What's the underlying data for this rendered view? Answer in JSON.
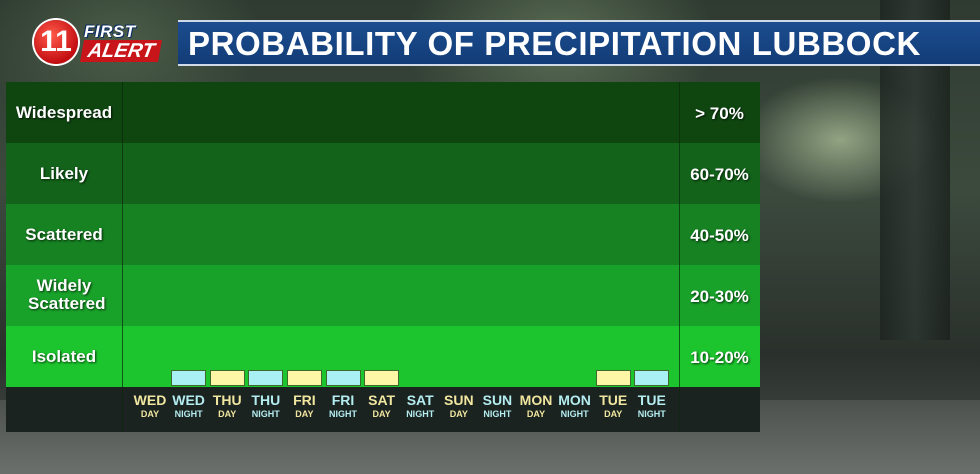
{
  "header": {
    "logo_number": "11",
    "logo_first": "FIRST",
    "logo_alert": "ALERT",
    "title": "PROBABILITY OF PRECIPITATION LUBBOCK"
  },
  "colors": {
    "title_bg": "#123c77",
    "widespread": "#0f4610",
    "likely": "#13631a",
    "scattered": "#168222",
    "widely_scattered": "#19a22a",
    "isolated": "#1cc52e",
    "day_bar": "#fdf6a6",
    "night_bar": "#a8f0f4",
    "day_text": "#f1e6a0",
    "night_text": "#b4ecf0"
  },
  "chart_data": {
    "type": "bar",
    "title": "PROBABILITY OF PRECIPITATION LUBBOCK",
    "categories": [
      {
        "day": "WED",
        "period": "DAY"
      },
      {
        "day": "WED",
        "period": "NIGHT"
      },
      {
        "day": "THU",
        "period": "DAY"
      },
      {
        "day": "THU",
        "period": "NIGHT"
      },
      {
        "day": "FRI",
        "period": "DAY"
      },
      {
        "day": "FRI",
        "period": "NIGHT"
      },
      {
        "day": "SAT",
        "period": "DAY"
      },
      {
        "day": "SAT",
        "period": "NIGHT"
      },
      {
        "day": "SUN",
        "period": "DAY"
      },
      {
        "day": "SUN",
        "period": "NIGHT"
      },
      {
        "day": "MON",
        "period": "DAY"
      },
      {
        "day": "MON",
        "period": "NIGHT"
      },
      {
        "day": "TUE",
        "period": "DAY"
      },
      {
        "day": "TUE",
        "period": "NIGHT"
      }
    ],
    "values": [
      0,
      10,
      10,
      10,
      10,
      10,
      10,
      0,
      0,
      0,
      0,
      0,
      10,
      10
    ],
    "ylim": [
      0,
      100
    ],
    "bands": [
      {
        "label": "Widespread",
        "range": "> 70%"
      },
      {
        "label": "Likely",
        "range": "60-70%"
      },
      {
        "label": "Scattered",
        "range": "40-50%"
      },
      {
        "label": "Widely Scattered",
        "range": "20-30%"
      },
      {
        "label": "Isolated",
        "range": "10-20%"
      }
    ]
  }
}
